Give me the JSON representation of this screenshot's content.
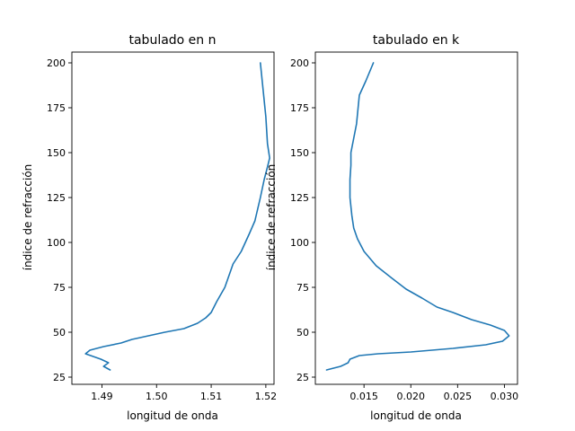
{
  "chart_data": [
    {
      "type": "line",
      "title": "tabulado en n",
      "xlabel": "longitud de onda",
      "ylabel": "índice de refracción",
      "xlim": [
        1.4845,
        1.5215
      ],
      "ylim": [
        21,
        206
      ],
      "xticks": [
        1.49,
        1.5,
        1.51,
        1.52
      ],
      "xtick_labels": [
        "1.49",
        "1.50",
        "1.51",
        "1.52"
      ],
      "yticks": [
        25,
        50,
        75,
        100,
        125,
        150,
        175,
        200
      ],
      "ytick_labels": [
        "25",
        "50",
        "75",
        "100",
        "125",
        "150",
        "175",
        "200"
      ],
      "grid": false,
      "color": "#1f77b4",
      "series": [
        {
          "x": [
            1.4915,
            1.4903,
            1.4912,
            1.4898,
            1.487,
            1.4878,
            1.4903,
            1.4935,
            1.4955,
            1.4985,
            1.5015,
            1.505,
            1.5075,
            1.509,
            1.51,
            1.511,
            1.5125,
            1.514,
            1.5155,
            1.517,
            1.518,
            1.519,
            1.5197,
            1.5203,
            1.5207,
            1.5203,
            1.52,
            1.5195,
            1.519
          ],
          "y": [
            29,
            31,
            33,
            35,
            38,
            40,
            42,
            44,
            46,
            48,
            50,
            52,
            55,
            58,
            61,
            67,
            75,
            88,
            95,
            105,
            112,
            125,
            135,
            142,
            147,
            155,
            170,
            185,
            200
          ]
        }
      ]
    },
    {
      "type": "line",
      "title": "tabulado en k",
      "xlabel": "longitud de onda",
      "ylabel": "índice de refracción",
      "xlim": [
        0.0098,
        0.0314
      ],
      "ylim": [
        21,
        206
      ],
      "xticks": [
        0.015,
        0.02,
        0.025,
        0.03
      ],
      "xtick_labels": [
        "0.015",
        "0.020",
        "0.025",
        "0.030"
      ],
      "yticks": [
        25,
        50,
        75,
        100,
        125,
        150,
        175,
        200
      ],
      "ytick_labels": [
        "25",
        "50",
        "75",
        "100",
        "125",
        "150",
        "175",
        "200"
      ],
      "grid": false,
      "color": "#1f77b4",
      "series": [
        {
          "x": [
            0.011,
            0.0125,
            0.0133,
            0.0135,
            0.0145,
            0.0165,
            0.02,
            0.0245,
            0.028,
            0.0298,
            0.0305,
            0.03,
            0.0285,
            0.0265,
            0.0245,
            0.0228,
            0.0212,
            0.0195,
            0.018,
            0.0163,
            0.015,
            0.0143,
            0.0139,
            0.0137,
            0.0135,
            0.0135,
            0.0136,
            0.0136,
            0.0139,
            0.0142,
            0.0145,
            0.0152,
            0.016
          ],
          "y": [
            29,
            31,
            33,
            35,
            37,
            38,
            39,
            41,
            43,
            45,
            48,
            51,
            54,
            57,
            61,
            64,
            69,
            74,
            80,
            87,
            95,
            102,
            108,
            115,
            125,
            135,
            143,
            150,
            158,
            166,
            182,
            190,
            200
          ]
        }
      ]
    }
  ]
}
